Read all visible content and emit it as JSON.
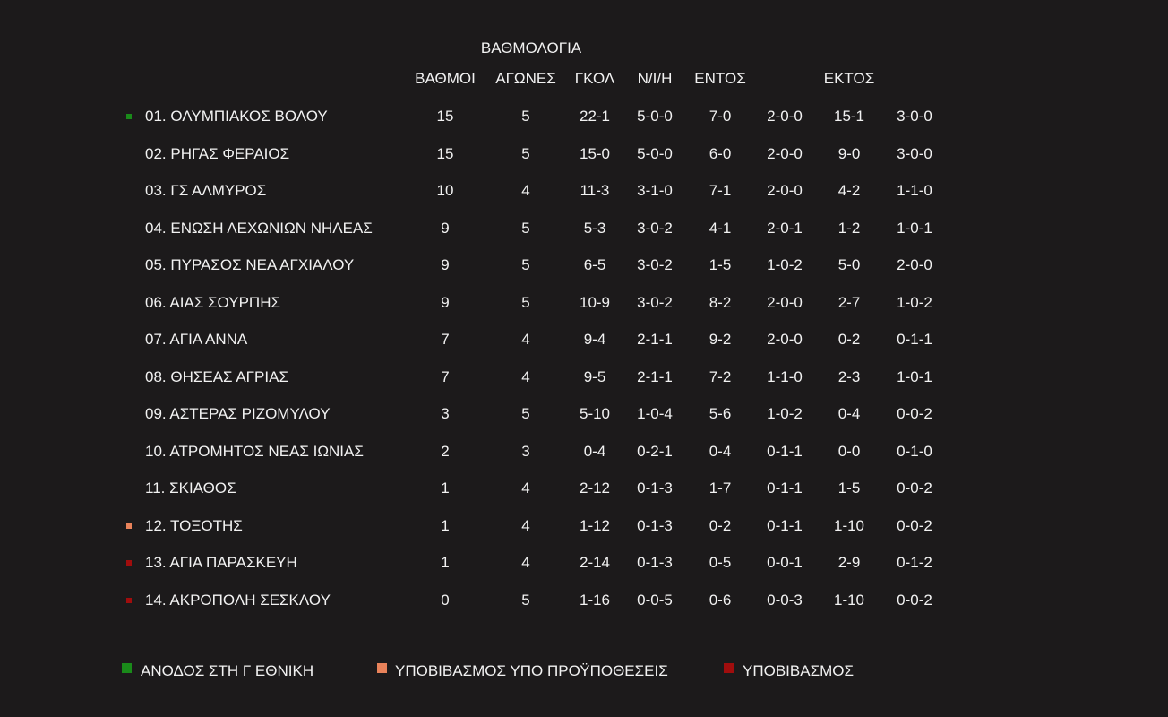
{
  "title": "ΒΑΘΜΟΛΟΓΙΑ",
  "headers": {
    "points": "ΒΑΘΜΟΙ",
    "games": "ΑΓΩΝΕΣ",
    "goals": "ΓΚΟΛ",
    "record": "Ν/Ι/Η",
    "home": "ΕΝΤΟΣ",
    "away": "ΕΚΤΟΣ"
  },
  "colors": {
    "promotion": "#1a8a1a",
    "conditional_relegation": "#e8825a",
    "relegation": "#a00d0d"
  },
  "rows": [
    {
      "team": "01. ΟΛΥΜΠΙΑΚΟΣ ΒΟΛΟΥ",
      "marker": "promotion",
      "cells": [
        "15",
        "5",
        "22-1",
        "5-0-0",
        "7-0",
        "2-0-0",
        "15-1",
        "3-0-0"
      ]
    },
    {
      "team": "02. ΡΗΓΑΣ ΦΕΡΑΙΟΣ",
      "marker": null,
      "cells": [
        "15",
        "5",
        "15-0",
        "5-0-0",
        "6-0",
        "2-0-0",
        "9-0",
        "3-0-0"
      ]
    },
    {
      "team": "03. ΓΣ ΑΛΜΥΡΟΣ",
      "marker": null,
      "cells": [
        "10",
        "4",
        "11-3",
        "3-1-0",
        "7-1",
        "2-0-0",
        "4-2",
        "1-1-0"
      ]
    },
    {
      "team": "04. ΕΝΩΣΗ ΛΕΧΩΝΙΩΝ ΝΗΛΕΑΣ",
      "marker": null,
      "cells": [
        "9",
        "5",
        "5-3",
        "3-0-2",
        "4-1",
        "2-0-1",
        "1-2",
        "1-0-1"
      ]
    },
    {
      "team": "05. ΠΥΡΑΣΟΣ ΝΕΑ ΑΓΧΙΑΛΟΥ",
      "marker": null,
      "cells": [
        "9",
        "5",
        "6-5",
        "3-0-2",
        "1-5",
        "1-0-2",
        "5-0",
        "2-0-0"
      ]
    },
    {
      "team": "06. ΑΙΑΣ ΣΟΥΡΠΗΣ",
      "marker": null,
      "cells": [
        "9",
        "5",
        "10-9",
        "3-0-2",
        "8-2",
        "2-0-0",
        "2-7",
        "1-0-2"
      ]
    },
    {
      "team": "07. ΑΓΙΑ ΑΝΝΑ",
      "marker": null,
      "cells": [
        "7",
        "4",
        "9-4",
        "2-1-1",
        "9-2",
        "2-0-0",
        "0-2",
        "0-1-1"
      ]
    },
    {
      "team": "08. ΘΗΣΕΑΣ ΑΓΡΙΑΣ",
      "marker": null,
      "cells": [
        "7",
        "4",
        "9-5",
        "2-1-1",
        "7-2",
        "1-1-0",
        "2-3",
        "1-0-1"
      ]
    },
    {
      "team": "09. ΑΣΤΕΡΑΣ ΡΙΖΟΜΥΛΟΥ",
      "marker": null,
      "cells": [
        "3",
        "5",
        "5-10",
        "1-0-4",
        "5-6",
        "1-0-2",
        "0-4",
        "0-0-2"
      ]
    },
    {
      "team": "10. ΑΤΡΟΜΗΤΟΣ ΝΕΑΣ ΙΩΝΙΑΣ",
      "marker": null,
      "cells": [
        "2",
        "3",
        "0-4",
        "0-2-1",
        "0-4",
        "0-1-1",
        "0-0",
        "0-1-0"
      ]
    },
    {
      "team": "11. ΣΚΙΑΘΟΣ",
      "marker": null,
      "cells": [
        "1",
        "4",
        "2-12",
        "0-1-3",
        "1-7",
        "0-1-1",
        "1-5",
        "0-0-2"
      ]
    },
    {
      "team": "12. ΤΟΞΟΤΗΣ",
      "marker": "conditional_relegation",
      "cells": [
        "1",
        "4",
        "1-12",
        "0-1-3",
        "0-2",
        "0-1-1",
        "1-10",
        "0-0-2"
      ]
    },
    {
      "team": "13. ΑΓΙΑ ΠΑΡΑΣΚΕΥΗ",
      "marker": "relegation",
      "cells": [
        "1",
        "4",
        "2-14",
        "0-1-3",
        "0-5",
        "0-0-1",
        "2-9",
        "0-1-2"
      ]
    },
    {
      "team": "14. ΑΚΡΟΠΟΛΗ ΣΕΣΚΛΟΥ",
      "marker": "relegation",
      "cells": [
        "0",
        "5",
        "1-16",
        "0-0-5",
        "0-6",
        "0-0-3",
        "1-10",
        "0-0-2"
      ]
    }
  ],
  "legend": [
    {
      "label": "ΑΝΟΔΟΣ ΣΤΗ Γ ΕΘΝΙΚΗ",
      "marker": "promotion"
    },
    {
      "label": "ΥΠΟΒΙΒΑΣΜΟΣ ΥΠΟ ΠΡΟΫΠΟΘΕΣΕΙΣ",
      "marker": "conditional_relegation"
    },
    {
      "label": "ΥΠΟΒΙΒΑΣΜΟΣ",
      "marker": "relegation"
    }
  ]
}
